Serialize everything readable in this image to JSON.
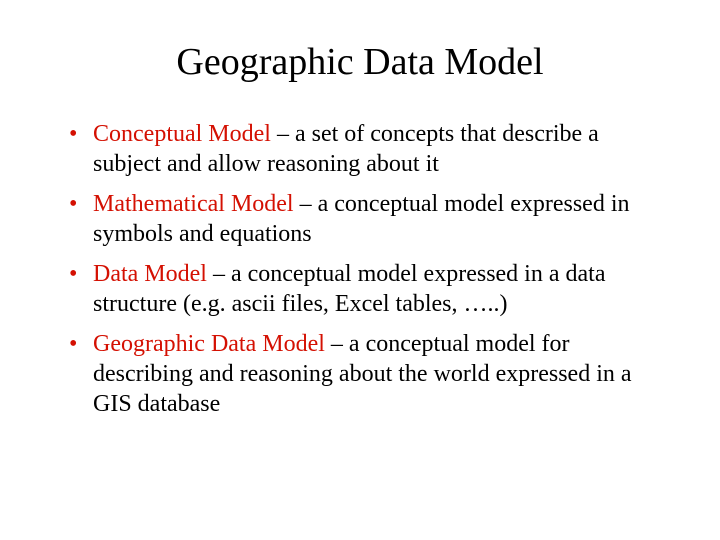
{
  "title": "Geographic Data Model",
  "bullet_color": "#d41002",
  "term_color": "#d41002",
  "body_color": "#000000",
  "background_color": "#ffffff",
  "title_fontsize": 38,
  "body_fontsize": 24,
  "bullets": [
    {
      "term": "Conceptual Model",
      "desc": " – a set of concepts that describe a subject and allow reasoning about it"
    },
    {
      "term": "Mathematical Model",
      "desc": " – a conceptual model expressed in symbols and equations"
    },
    {
      "term": "Data Model",
      "desc": " – a conceptual model expressed in a data structure (e.g. ascii files, Excel tables, …..)"
    },
    {
      "term": "Geographic Data Model",
      "desc": " – a conceptual model for describing and reasoning about the world expressed in a GIS database"
    }
  ]
}
